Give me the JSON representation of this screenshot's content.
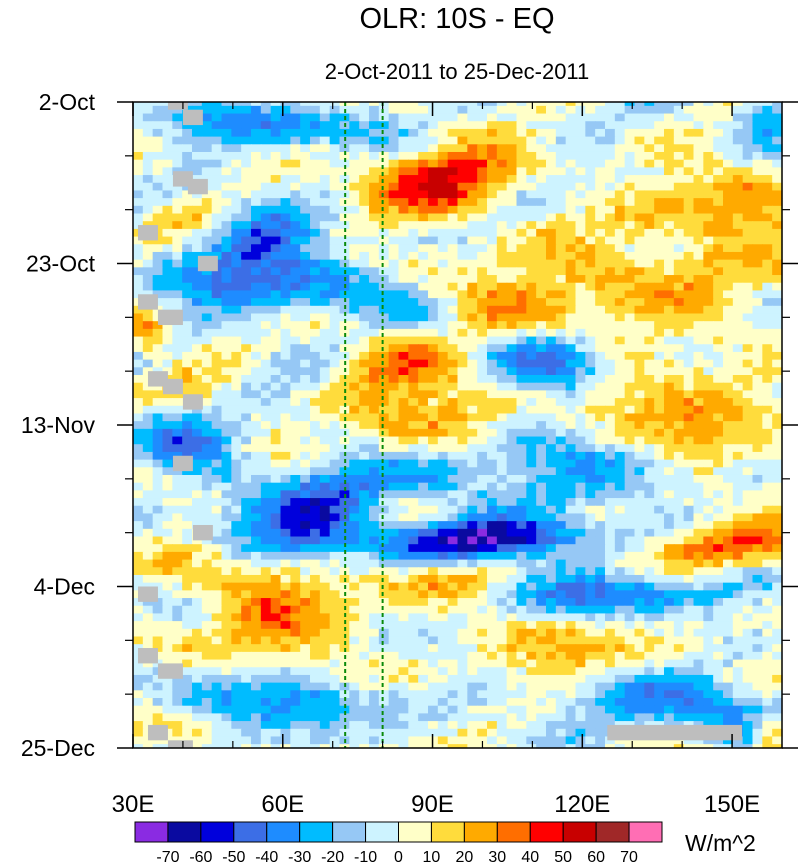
{
  "chart_data": {
    "type": "heatmap",
    "title": "OLR: 10S - EQ",
    "subtitle": "2-Oct-2011 to 25-Dec-2011",
    "x_axis": {
      "range": [
        30,
        160
      ],
      "unit": "degrees east longitude",
      "ticks": [
        {
          "value": 30,
          "label": "30E"
        },
        {
          "value": 60,
          "label": "60E"
        },
        {
          "value": 90,
          "label": "90E"
        },
        {
          "value": 120,
          "label": "120E"
        },
        {
          "value": 150,
          "label": "150E"
        }
      ]
    },
    "y_axis": {
      "range": [
        0,
        84
      ],
      "unit": "days since 2-Oct-2011 (time increases downward)",
      "ticks": [
        {
          "value": 0,
          "label": "2-Oct"
        },
        {
          "value": 21,
          "label": "23-Oct"
        },
        {
          "value": 42,
          "label": "13-Nov"
        },
        {
          "value": 63,
          "label": "4-Dec"
        },
        {
          "value": 84,
          "label": "25-Dec"
        }
      ]
    },
    "reference_lines_lon": [
      72.5,
      80
    ],
    "colorbar": {
      "unit_label": "W/m^2",
      "levels": [
        -70,
        -60,
        -50,
        -40,
        -30,
        -20,
        -10,
        0,
        10,
        20,
        30,
        40,
        50,
        60,
        70
      ],
      "level_labels": [
        "-70",
        "-60",
        "-50",
        "-40",
        "-30",
        "-20",
        "-10",
        "0",
        "10",
        "20",
        "30",
        "40",
        "50",
        "60",
        "70"
      ],
      "colors": [
        "#8a2be2",
        "#0a0aa0",
        "#0000dc",
        "#3c6ee6",
        "#1e8cff",
        "#00bcff",
        "#96c8f5",
        "#cdf3ff",
        "#ffffc8",
        "#ffdc3c",
        "#ffaa00",
        "#ff6e00",
        "#ff0000",
        "#c80000",
        "#a02828",
        "#ff6eb4"
      ]
    },
    "missing_color": "#bebebe",
    "approximate_features": [
      {
        "lon": 100,
        "day": 57,
        "value": -65,
        "sigma_lon": 16,
        "sigma_day": 2.0
      },
      {
        "lon": 62,
        "day": 55,
        "value": -45,
        "sigma_lon": 10,
        "sigma_day": 3
      },
      {
        "lon": 70,
        "day": 50,
        "value": -40,
        "sigma_lon": 8,
        "sigma_day": 2.5
      },
      {
        "lon": 60,
        "day": 24,
        "value": -45,
        "sigma_lon": 14,
        "sigma_day": 2.5
      },
      {
        "lon": 55,
        "day": 18,
        "value": -40,
        "sigma_lon": 8,
        "sigma_day": 3
      },
      {
        "lon": 60,
        "day": 3,
        "value": -40,
        "sigma_lon": 14,
        "sigma_day": 2
      },
      {
        "lon": 115,
        "day": 35,
        "value": -45,
        "sigma_lon": 8,
        "sigma_day": 3
      },
      {
        "lon": 112,
        "day": 48,
        "value": -35,
        "sigma_lon": 14,
        "sigma_day": 3
      },
      {
        "lon": 128,
        "day": 64,
        "value": -40,
        "sigma_lon": 16,
        "sigma_day": 2
      },
      {
        "lon": 140,
        "day": 78,
        "value": -35,
        "sigma_lon": 18,
        "sigma_day": 3
      },
      {
        "lon": 60,
        "day": 78,
        "value": -35,
        "sigma_lon": 14,
        "sigma_day": 2.5
      },
      {
        "lon": 158,
        "day": 1,
        "value": -40,
        "sigma_lon": 6,
        "sigma_day": 2
      },
      {
        "lon": 92,
        "day": 10,
        "value": 48,
        "sigma_lon": 10,
        "sigma_day": 3
      },
      {
        "lon": 58,
        "day": 66,
        "value": 28,
        "sigma_lon": 12,
        "sigma_day": 5
      },
      {
        "lon": 88,
        "day": 38,
        "value": 28,
        "sigma_lon": 12,
        "sigma_day": 4
      },
      {
        "lon": 150,
        "day": 14,
        "value": 35,
        "sigma_lon": 10,
        "sigma_day": 3
      },
      {
        "lon": 150,
        "day": 58,
        "value": 40,
        "sigma_lon": 12,
        "sigma_day": 2
      },
      {
        "lon": 125,
        "day": 24,
        "value": 25,
        "sigma_lon": 20,
        "sigma_day": 4
      },
      {
        "lon": 140,
        "day": 40,
        "value": 25,
        "sigma_lon": 16,
        "sigma_day": 4
      },
      {
        "lon": 158,
        "day": 82,
        "value": 45,
        "sigma_lon": 3,
        "sigma_day": 2
      },
      {
        "lon": 33,
        "day": 30,
        "value": 30,
        "sigma_lon": 3,
        "sigma_day": 2
      },
      {
        "lon": 120,
        "day": 72,
        "value": 20,
        "sigma_lon": 14,
        "sigma_day": 3
      },
      {
        "lon": 95,
        "day": 62,
        "value": 22,
        "sigma_lon": 10,
        "sigma_day": 2
      },
      {
        "lon": 40,
        "day": 44,
        "value": -30,
        "sigma_lon": 8,
        "sigma_day": 3
      }
    ],
    "missing_blocks": [
      {
        "lon0": 37,
        "lon1": 41,
        "day0": 0,
        "day1": 1
      },
      {
        "lon0": 40,
        "lon1": 44,
        "day0": 1,
        "day1": 3
      },
      {
        "lon0": 38,
        "lon1": 42,
        "day0": 9,
        "day1": 11
      },
      {
        "lon0": 41,
        "lon1": 45,
        "day0": 10,
        "day1": 12
      },
      {
        "lon0": 31,
        "lon1": 35,
        "day0": 16,
        "day1": 18
      },
      {
        "lon0": 43,
        "lon1": 47,
        "day0": 20,
        "day1": 22
      },
      {
        "lon0": 31,
        "lon1": 35,
        "day0": 25,
        "day1": 27
      },
      {
        "lon0": 35,
        "lon1": 40,
        "day0": 27,
        "day1": 29
      },
      {
        "lon0": 33,
        "lon1": 37,
        "day0": 35,
        "day1": 37
      },
      {
        "lon0": 36,
        "lon1": 40,
        "day0": 36,
        "day1": 38
      },
      {
        "lon0": 40,
        "lon1": 44,
        "day0": 38,
        "day1": 40
      },
      {
        "lon0": 38,
        "lon1": 42,
        "day0": 46,
        "day1": 48
      },
      {
        "lon0": 42,
        "lon1": 46,
        "day0": 55,
        "day1": 57
      },
      {
        "lon0": 31,
        "lon1": 35,
        "day0": 63,
        "day1": 65
      },
      {
        "lon0": 31,
        "lon1": 35,
        "day0": 71,
        "day1": 73
      },
      {
        "lon0": 35,
        "lon1": 40,
        "day0": 73,
        "day1": 75
      },
      {
        "lon0": 33,
        "lon1": 37,
        "day0": 81,
        "day1": 83
      },
      {
        "lon0": 37,
        "lon1": 42,
        "day0": 83,
        "day1": 84
      },
      {
        "lon0": 125,
        "lon1": 152,
        "day0": 81,
        "day1": 83
      }
    ]
  }
}
